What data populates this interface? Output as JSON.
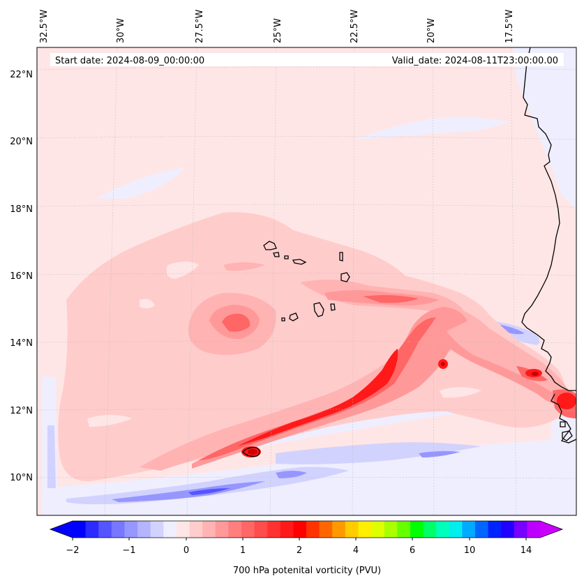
{
  "chart_data": {
    "type": "heatmap",
    "title_left": "Start date: 2024-08-09_00:00:00",
    "title_right": "Valid_date: 2024-08-11T23:00:00.00",
    "colorbar_label": "700 hPa potenital vorticity (PVU)",
    "colorbar_ticks": [
      "−2",
      "−1",
      "0",
      "1",
      "2",
      "4",
      "6",
      "10",
      "14"
    ],
    "lon_labels": [
      "32.5°W",
      "30°W",
      "27.5°W",
      "25°W",
      "22.5°W",
      "20°W",
      "17.5°W"
    ],
    "lat_labels": [
      "22°N",
      "20°N",
      "18°N",
      "16°N",
      "14°N",
      "12°N",
      "10°N"
    ],
    "lon_range": [
      -33,
      -15.5
    ],
    "lat_range": [
      9,
      22.8
    ],
    "levels_colors": [
      "#0000ff",
      "#2b2bff",
      "#5555ff",
      "#7777ff",
      "#9696ff",
      "#b4b4ff",
      "#d2d2ff",
      "#eeeeff",
      "#ffe6e6",
      "#ffcccc",
      "#ffb3b3",
      "#ff9999",
      "#ff7f7f",
      "#ff6666",
      "#ff4c4c",
      "#ff3232",
      "#ff1919",
      "#ff0000",
      "#ff3300",
      "#ff6600",
      "#ff9900",
      "#ffcc00",
      "#ffee00",
      "#ddff00",
      "#aaff00",
      "#66ff00",
      "#00ff00",
      "#00ff66",
      "#00ffbb",
      "#00eeee",
      "#00aaff",
      "#0066ff",
      "#0022ff",
      "#2200ff",
      "#7700ff",
      "#bb00ff"
    ],
    "under_color": "#0000ff",
    "over_color": "#cc00ff",
    "features": [
      {
        "name": "pv-band-itcz",
        "value": 1.6
      },
      {
        "name": "pv-max-26w",
        "value": 2.8
      },
      {
        "name": "pv-max-20w",
        "value": 3.0
      },
      {
        "name": "pv-max-coast",
        "value": 3.5
      },
      {
        "name": "pv-vortex-26w-15n",
        "value": 1.2
      },
      {
        "name": "pv-min-southern-band",
        "value": -1.5
      }
    ]
  }
}
